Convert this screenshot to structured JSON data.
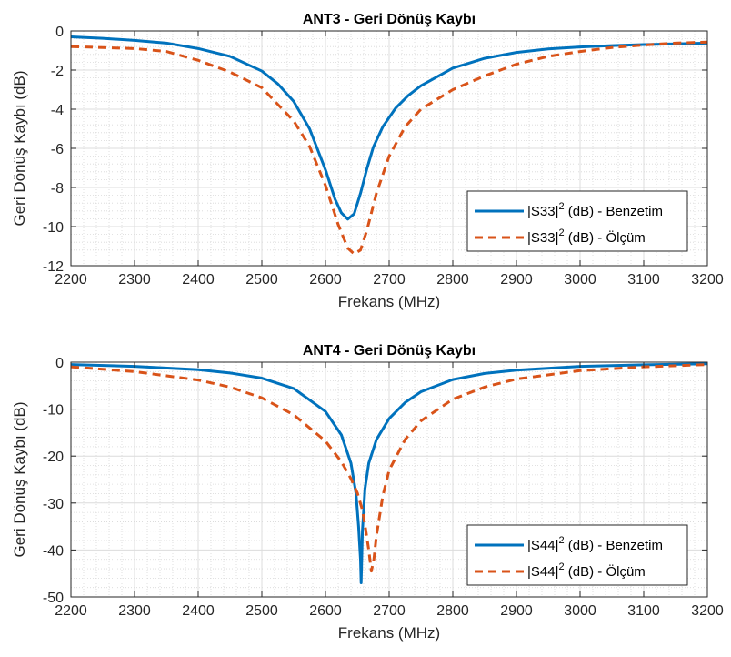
{
  "chart_data": [
    {
      "type": "line",
      "title": "ANT3 - Geri Dönüş Kaybı",
      "xlabel": "Frekans (MHz)",
      "ylabel": "Geri Dönüş Kaybı (dB)",
      "xlim": [
        2200,
        3200
      ],
      "ylim": [
        -12,
        0
      ],
      "xticks": [
        2200,
        2300,
        2400,
        2500,
        2600,
        2700,
        2800,
        2900,
        3000,
        3100,
        3200
      ],
      "yticks": [
        0,
        -2,
        -4,
        -6,
        -8,
        -10,
        -12
      ],
      "grid": true,
      "legend_position": "bottom-right",
      "series": [
        {
          "name": "|S33|2 (dB) - Benzetim",
          "name_base": "|S33|",
          "name_sup": "2",
          "name_rest": " (dB) - Benzetim",
          "style": "solid",
          "color": "#0072BD",
          "x": [
            2200,
            2250,
            2300,
            2350,
            2400,
            2450,
            2500,
            2525,
            2550,
            2575,
            2600,
            2615,
            2625,
            2635,
            2645,
            2655,
            2665,
            2675,
            2690,
            2710,
            2730,
            2750,
            2800,
            2850,
            2900,
            2950,
            3000,
            3050,
            3100,
            3150,
            3200
          ],
          "y": [
            -0.3,
            -0.38,
            -0.48,
            -0.62,
            -0.9,
            -1.3,
            -2.05,
            -2.7,
            -3.6,
            -5.0,
            -7.1,
            -8.6,
            -9.3,
            -9.62,
            -9.35,
            -8.3,
            -7.05,
            -5.95,
            -4.9,
            -3.95,
            -3.3,
            -2.8,
            -1.9,
            -1.4,
            -1.1,
            -0.92,
            -0.82,
            -0.75,
            -0.7,
            -0.66,
            -0.62
          ]
        },
        {
          "name": "|S33|2 (dB) - Ölçüm",
          "name_base": "|S33|",
          "name_sup": "2",
          "name_rest": " (dB) - Ölçüm",
          "style": "dashed",
          "color": "#D95319",
          "x": [
            2200,
            2250,
            2300,
            2350,
            2400,
            2450,
            2500,
            2550,
            2575,
            2600,
            2620,
            2635,
            2645,
            2655,
            2665,
            2680,
            2700,
            2725,
            2750,
            2800,
            2850,
            2900,
            2950,
            3000,
            3050,
            3100,
            3150,
            3200
          ],
          "y": [
            -0.8,
            -0.85,
            -0.9,
            -1.05,
            -1.5,
            -2.1,
            -2.9,
            -4.6,
            -5.9,
            -7.9,
            -9.9,
            -11.1,
            -11.4,
            -11.2,
            -10.2,
            -8.3,
            -6.4,
            -4.9,
            -4.0,
            -3.0,
            -2.3,
            -1.7,
            -1.3,
            -1.05,
            -0.85,
            -0.72,
            -0.62,
            -0.57
          ]
        }
      ]
    },
    {
      "type": "line",
      "title": "ANT4 - Geri Dönüş Kaybı",
      "xlabel": "Frekans (MHz)",
      "ylabel": "Geri Dönüş Kaybı (dB)",
      "xlim": [
        2200,
        3200
      ],
      "ylim": [
        -50,
        0
      ],
      "xticks": [
        2200,
        2300,
        2400,
        2500,
        2600,
        2700,
        2800,
        2900,
        3000,
        3100,
        3200
      ],
      "yticks": [
        0,
        -10,
        -20,
        -30,
        -40,
        -50
      ],
      "grid": true,
      "legend_position": "bottom-right",
      "series": [
        {
          "name": "|S44|2 (dB) - Benzetim",
          "name_base": "|S44|",
          "name_sup": "2",
          "name_rest": " (dB) - Benzetim",
          "style": "solid",
          "color": "#0072BD",
          "x": [
            2200,
            2300,
            2400,
            2450,
            2500,
            2550,
            2600,
            2625,
            2640,
            2648,
            2652,
            2655,
            2656,
            2658,
            2662,
            2668,
            2680,
            2700,
            2725,
            2750,
            2800,
            2850,
            2900,
            3000,
            3100,
            3200
          ],
          "y": [
            -0.5,
            -0.9,
            -1.6,
            -2.3,
            -3.4,
            -5.6,
            -10.5,
            -15.5,
            -21.5,
            -28.0,
            -35.0,
            -42.0,
            -47.0,
            -36.0,
            -27.0,
            -21.5,
            -16.5,
            -12.0,
            -8.6,
            -6.3,
            -3.7,
            -2.4,
            -1.7,
            -0.9,
            -0.55,
            -0.35
          ]
        },
        {
          "name": "|S44|2 (dB) - Ölçüm",
          "name_base": "|S44|",
          "name_sup": "2",
          "name_rest": " (dB) - Ölçüm",
          "style": "dashed",
          "color": "#D95319",
          "x": [
            2200,
            2300,
            2400,
            2450,
            2500,
            2550,
            2600,
            2625,
            2640,
            2650,
            2658,
            2663,
            2668,
            2672,
            2676,
            2680,
            2690,
            2700,
            2725,
            2750,
            2800,
            2850,
            2900,
            3000,
            3100,
            3200
          ],
          "y": [
            -1.0,
            -2.0,
            -3.8,
            -5.3,
            -7.6,
            -11.2,
            -16.8,
            -21.2,
            -24.8,
            -27.8,
            -31.5,
            -35.5,
            -40.0,
            -44.5,
            -42.0,
            -37.0,
            -28.5,
            -23.0,
            -16.5,
            -12.5,
            -7.9,
            -5.3,
            -3.6,
            -1.8,
            -1.0,
            -0.5
          ]
        }
      ]
    }
  ]
}
